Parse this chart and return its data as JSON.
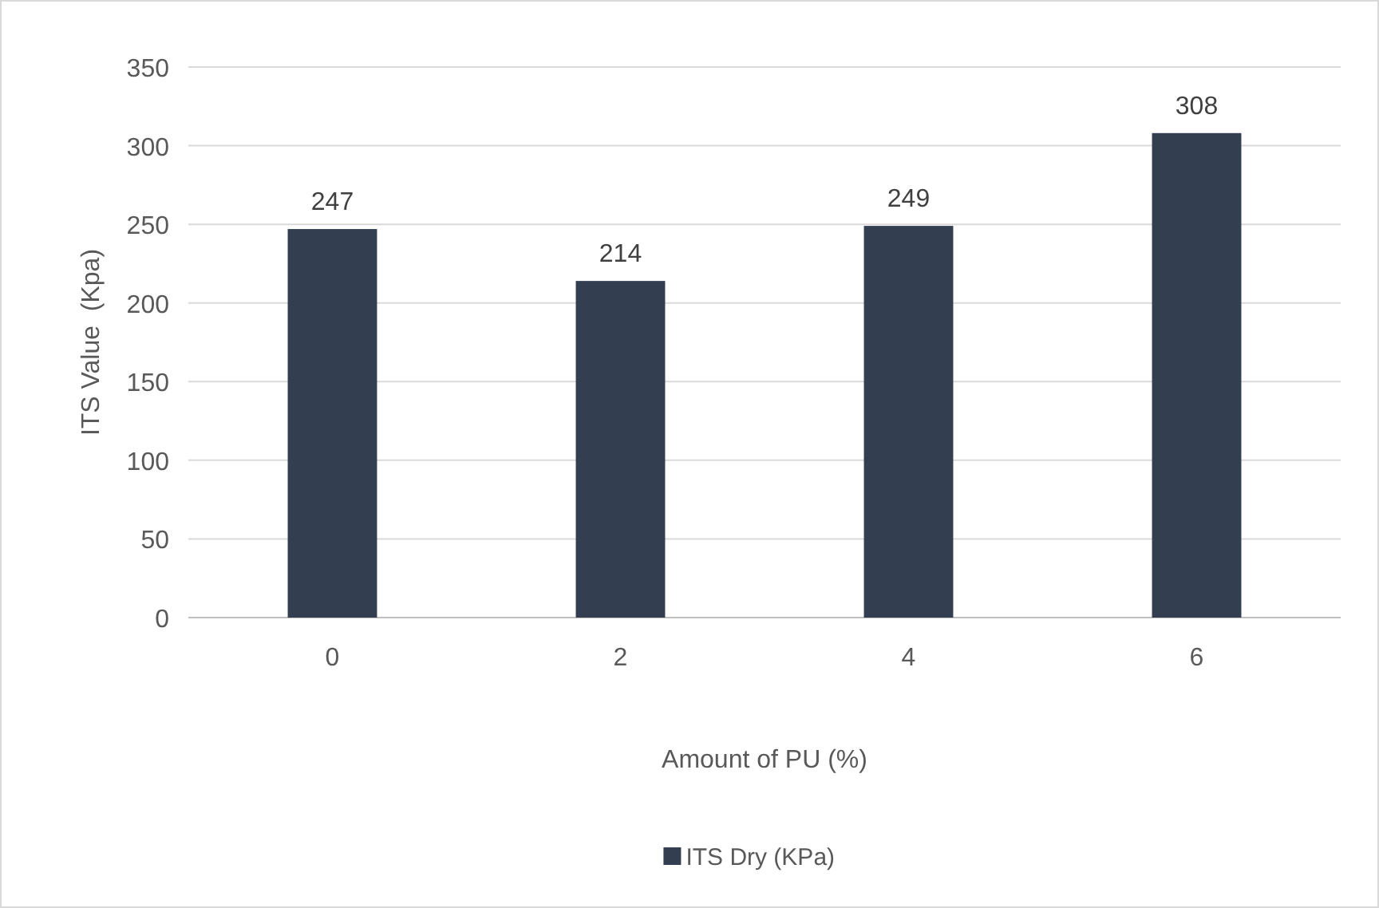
{
  "chart_data": {
    "type": "bar",
    "xlabel": "Amount of PU (%)",
    "ylabel": "ITS Value  (Kpa)",
    "categories": [
      "0",
      "2",
      "4",
      "6"
    ],
    "series": [
      {
        "name": "ITS Dry (KPa)",
        "color": "#333f50",
        "values": [
          247,
          214,
          249,
          308
        ]
      }
    ],
    "ylim": [
      0,
      350
    ],
    "yticks": [
      0,
      50,
      100,
      150,
      200,
      250,
      300,
      350
    ],
    "grid": "y",
    "legend": "bottom",
    "data_labels": true
  }
}
